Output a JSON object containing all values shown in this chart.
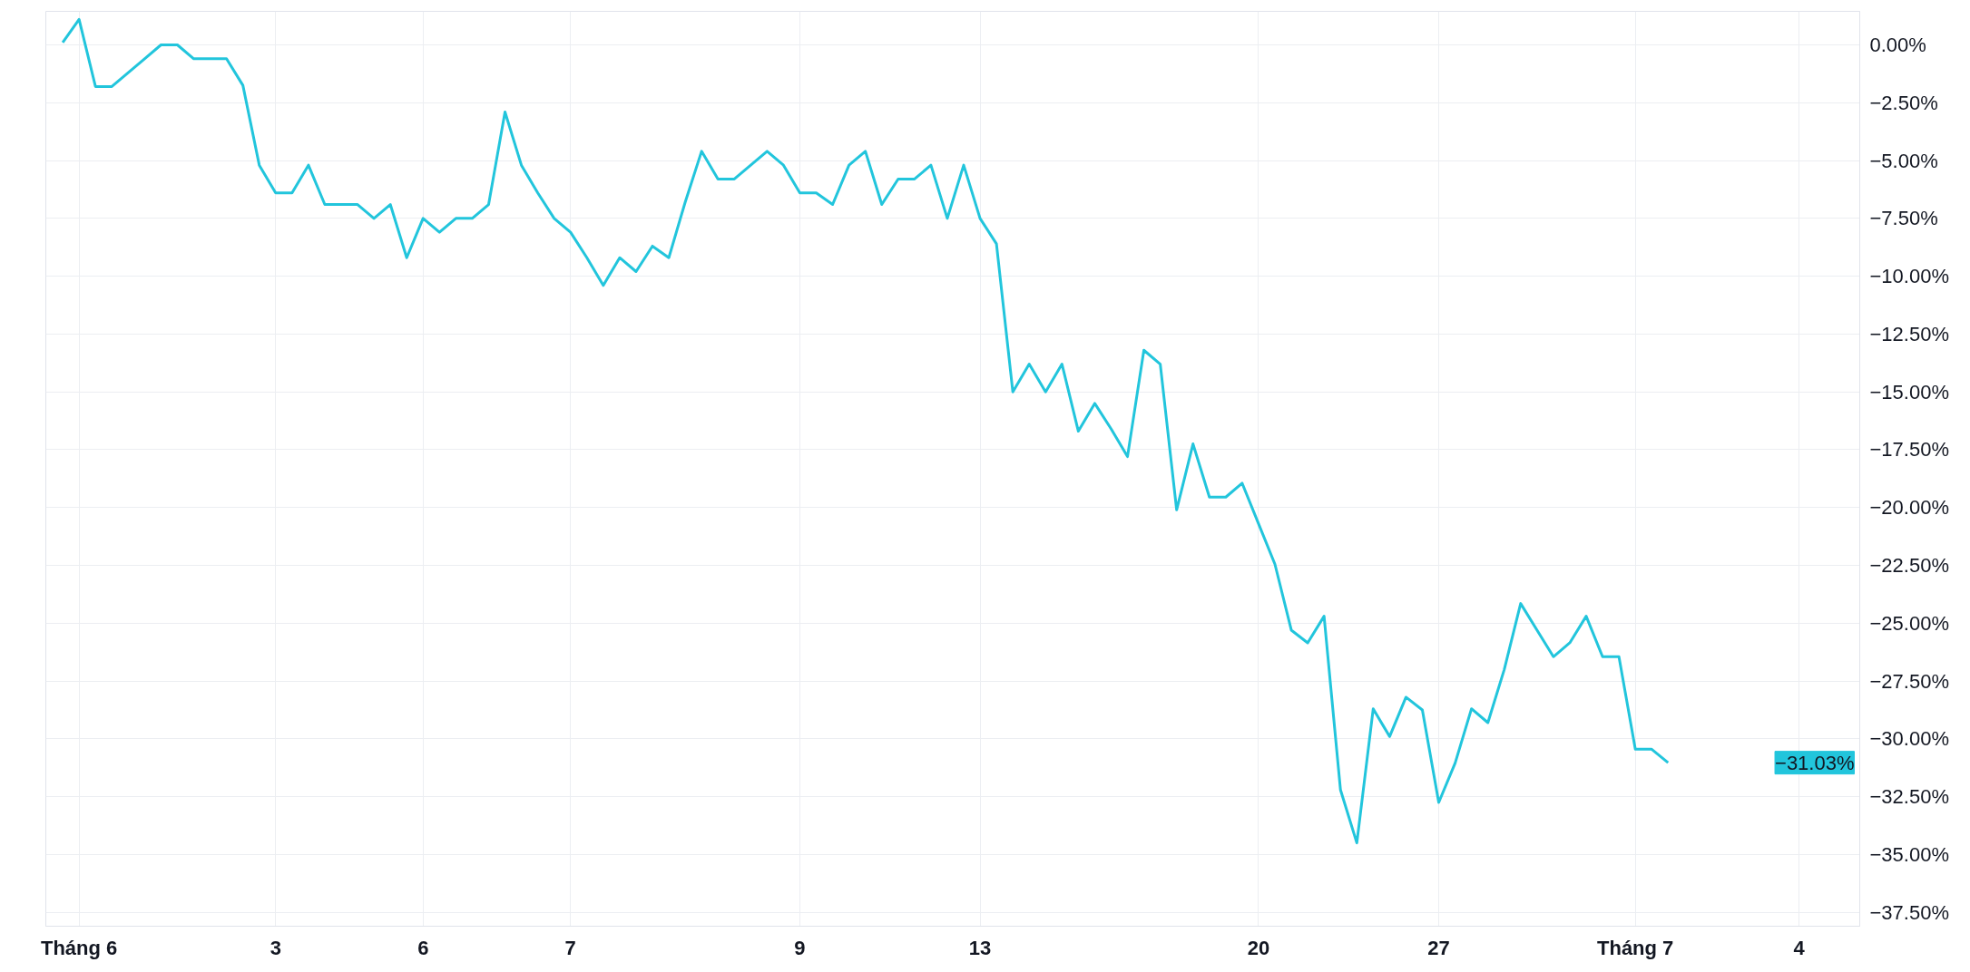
{
  "chart_data": {
    "type": "line",
    "categories": [
      null,
      "Tháng 6",
      null,
      null,
      null,
      null,
      null,
      null,
      null,
      null,
      null,
      null,
      null,
      "3",
      null,
      null,
      null,
      null,
      null,
      null,
      null,
      null,
      "6",
      null,
      null,
      null,
      null,
      null,
      null,
      null,
      null,
      "7",
      null,
      null,
      null,
      null,
      null,
      null,
      null,
      null,
      null,
      null,
      null,
      null,
      null,
      "9",
      null,
      null,
      null,
      null,
      null,
      null,
      null,
      null,
      null,
      null,
      "13",
      null,
      null,
      null,
      null,
      null,
      null,
      null,
      null,
      null,
      null,
      null,
      null,
      null,
      null,
      null,
      null,
      "20",
      null,
      null,
      null,
      null,
      null,
      null,
      null,
      null,
      null,
      null,
      "27",
      null,
      null,
      null,
      null,
      null,
      null,
      null,
      null,
      null,
      null,
      null,
      "Tháng 7",
      null,
      null,
      null,
      null,
      null,
      null,
      null,
      null,
      null,
      "4",
      null,
      null
    ],
    "series": [
      {
        "color": "#22c5dc",
        "values": [
          0.1,
          1.1,
          -1.8,
          -1.8,
          -1.2,
          -0.6,
          0.0,
          0.0,
          -0.6,
          -0.6,
          -0.6,
          -1.75,
          -5.2,
          -6.4,
          -6.4,
          -5.2,
          -6.9,
          -6.9,
          -6.9,
          -7.5,
          -6.9,
          -9.2,
          -7.5,
          -8.1,
          -7.5,
          -7.5,
          -6.9,
          -2.9,
          -5.2,
          -6.4,
          -7.5,
          -8.1,
          -9.2,
          -10.4,
          -9.2,
          -9.8,
          -8.7,
          -9.2,
          -6.8,
          -4.6,
          -5.8,
          -5.8,
          -5.2,
          -4.6,
          -5.2,
          -6.4,
          -6.4,
          -6.9,
          -5.2,
          -4.6,
          -6.9,
          -5.8,
          -5.8,
          -5.2,
          -7.5,
          -5.2,
          -7.5,
          -8.6,
          -15.0,
          -13.8,
          -15.0,
          -13.8,
          -16.7,
          -15.5,
          -16.6,
          -17.8,
          -13.2,
          -13.8,
          -20.1,
          -17.25,
          -19.55,
          -19.55,
          -18.95,
          -20.7,
          -22.45,
          -25.3,
          -25.85,
          -24.7,
          -32.2,
          -34.5,
          -28.7,
          -29.9,
          -28.2,
          -28.75,
          -32.75,
          -31.05,
          -28.7,
          -29.3,
          -27.0,
          -24.15,
          -25.3,
          -26.45,
          -25.85,
          -24.7,
          -26.45,
          -26.45,
          -30.45,
          -30.45,
          -31.03,
          null,
          null,
          null,
          null,
          null,
          null,
          null,
          null,
          null,
          null
        ]
      }
    ],
    "ylim": [
      -38.1,
      1.45
    ],
    "yticks": [
      {
        "value": 0,
        "label": "0.00%"
      },
      {
        "value": -2.5,
        "label": "−2.50%"
      },
      {
        "value": -5,
        "label": "−5.00%"
      },
      {
        "value": -7.5,
        "label": "−7.50%"
      },
      {
        "value": -10,
        "label": "−10.00%"
      },
      {
        "value": -12.5,
        "label": "−12.50%"
      },
      {
        "value": -15,
        "label": "−15.00%"
      },
      {
        "value": -17.5,
        "label": "−17.50%"
      },
      {
        "value": -20,
        "label": "−20.00%"
      },
      {
        "value": -22.5,
        "label": "−22.50%"
      },
      {
        "value": -25,
        "label": "−25.00%"
      },
      {
        "value": -27.5,
        "label": "−27.50%"
      },
      {
        "value": -30,
        "label": "−30.00%"
      },
      {
        "value": -32.5,
        "label": "−32.50%"
      },
      {
        "value": -35,
        "label": "−35.00%"
      },
      {
        "value": -37.5,
        "label": "−37.50%"
      }
    ],
    "annotations": [
      "−31.03%"
    ],
    "grid": true,
    "marker": "none",
    "line_style": "solid"
  }
}
